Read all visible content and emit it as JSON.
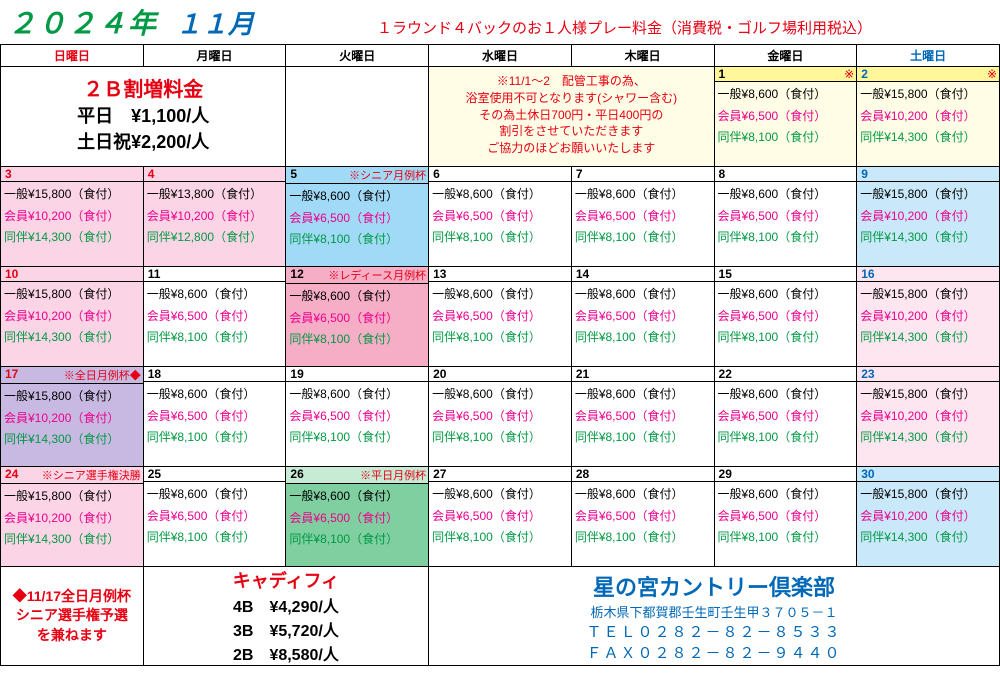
{
  "header": {
    "year": "２０２４年",
    "month": "１１月",
    "note": "１ラウンド４バックのお１人様プレー料金（消費税・ゴルフ場利用税込）"
  },
  "days": [
    "日曜日",
    "月曜日",
    "火曜日",
    "水曜日",
    "木曜日",
    "金曜日",
    "土曜日"
  ],
  "surcharge": {
    "title": "２Ｂ割増料金",
    "line1": "平日　¥1,100/人",
    "line2": "土日祝¥2,200/人"
  },
  "notice": {
    "l1": "※11/1～2　配管工事の為、",
    "l2": "浴室使用不可となります(シャワー含む)",
    "l3": "その為土休日700円・平日400円の",
    "l4": "割引をさせていただきます",
    "l5": "ご協力のほどお願いいたします"
  },
  "p_wkday": {
    "ippan": "一般¥8,600（食付）",
    "kaiin": "会員¥6,500（食付）",
    "douhan": "同伴¥8,100（食付）"
  },
  "p_wkend": {
    "ippan": "一般¥15,800（食付）",
    "kaiin": "会員¥10,200（食付）",
    "douhan": "同伴¥14,300（食付）"
  },
  "p_mon4": {
    "ippan": "一般¥13,800（食付）",
    "kaiin": "会員¥10,200（食付）",
    "douhan": "同伴¥12,800（食付）"
  },
  "events": {
    "d5": "※シニア月例杯",
    "d12": "※レディース月例杯",
    "d17": "※全日月例杯◆",
    "d24": "※シニア選手権決勝",
    "d26": "※平日月例杯"
  },
  "misc": {
    "kome": "※"
  },
  "footer": {
    "left": {
      "l1": "◆11/17全日月例杯",
      "l2": "シニア選手権予選",
      "l3": "を兼ねます"
    },
    "caddy": {
      "title": "キャディフィ",
      "l1": "4B　¥4,290/人",
      "l2": "3B　¥5,720/人",
      "l3": "2B　¥8,580/人"
    },
    "club": {
      "name": "星の宮カントリー倶楽部",
      "addr": "栃木県下都賀郡壬生町壬生甲３７０５－１",
      "tel": "ＴＥＬ０２８２－８２－８５３３",
      "fax": "ＦＡＸ０２８２－８２－９４４０"
    }
  }
}
